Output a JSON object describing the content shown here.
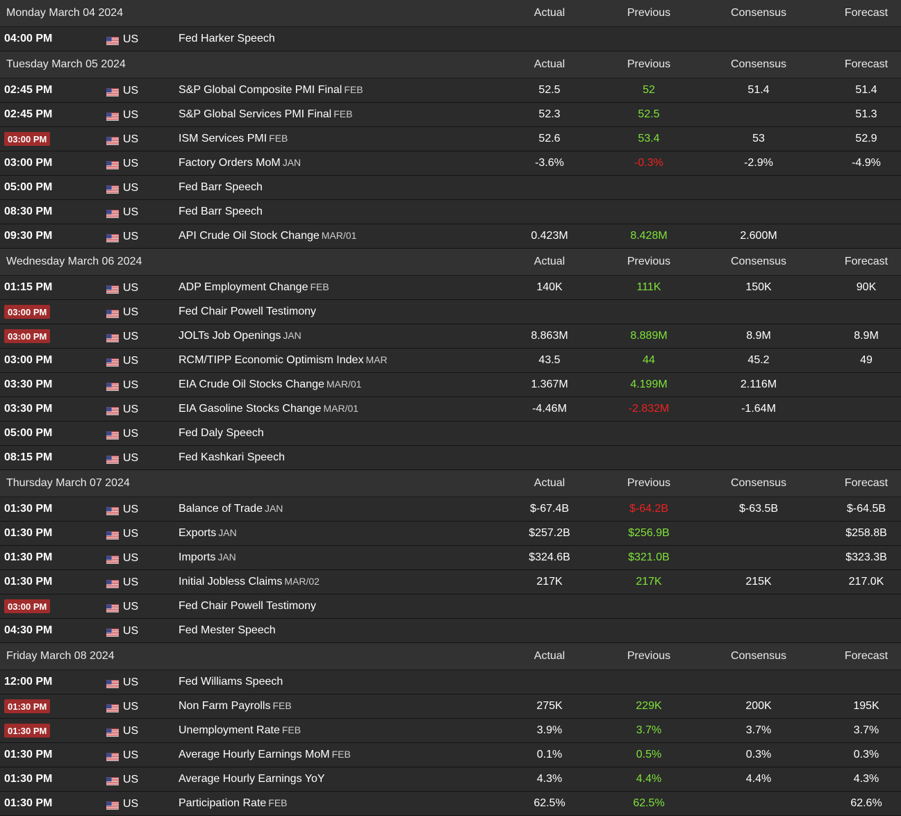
{
  "colors": {
    "background": "#2b2b2b",
    "header_background": "#323232",
    "high_impact_badge": "#a02c2c",
    "previous_up": "#7fe33a",
    "previous_down": "#ee2222"
  },
  "columns": {
    "actual": "Actual",
    "previous": "Previous",
    "consensus": "Consensus",
    "forecast": "Forecast"
  },
  "country_icon": "us-flag-icon",
  "days": [
    {
      "date": "Monday March 04 2024",
      "events": [
        {
          "time": "04:00 PM",
          "high": false,
          "country": "US",
          "event": "Fed Harker Speech",
          "ref": "",
          "actual": "",
          "previous": "",
          "prev_trend": "same",
          "consensus": "",
          "forecast": ""
        }
      ]
    },
    {
      "date": "Tuesday March 05 2024",
      "events": [
        {
          "time": "02:45 PM",
          "high": false,
          "country": "US",
          "event": "S&P Global Composite PMI Final",
          "ref": "FEB",
          "actual": "52.5",
          "previous": "52",
          "prev_trend": "up",
          "consensus": "51.4",
          "forecast": "51.4"
        },
        {
          "time": "02:45 PM",
          "high": false,
          "country": "US",
          "event": "S&P Global Services PMI Final",
          "ref": "FEB",
          "actual": "52.3",
          "previous": "52.5",
          "prev_trend": "up",
          "consensus": "",
          "forecast": "51.3"
        },
        {
          "time": "03:00 PM",
          "high": true,
          "country": "US",
          "event": "ISM Services PMI",
          "ref": "FEB",
          "actual": "52.6",
          "previous": "53.4",
          "prev_trend": "up",
          "consensus": "53",
          "forecast": "52.9"
        },
        {
          "time": "03:00 PM",
          "high": false,
          "country": "US",
          "event": "Factory Orders MoM",
          "ref": "JAN",
          "actual": "-3.6%",
          "previous": "-0.3%",
          "prev_trend": "down",
          "consensus": "-2.9%",
          "forecast": "-4.9%"
        },
        {
          "time": "05:00 PM",
          "high": false,
          "country": "US",
          "event": "Fed Barr Speech",
          "ref": "",
          "actual": "",
          "previous": "",
          "prev_trend": "same",
          "consensus": "",
          "forecast": ""
        },
        {
          "time": "08:30 PM",
          "high": false,
          "country": "US",
          "event": "Fed Barr Speech",
          "ref": "",
          "actual": "",
          "previous": "",
          "prev_trend": "same",
          "consensus": "",
          "forecast": ""
        },
        {
          "time": "09:30 PM",
          "high": false,
          "country": "US",
          "event": "API Crude Oil Stock Change",
          "ref": "MAR/01",
          "actual": "0.423M",
          "previous": "8.428M",
          "prev_trend": "up",
          "consensus": "2.600M",
          "forecast": ""
        }
      ]
    },
    {
      "date": "Wednesday March 06 2024",
      "events": [
        {
          "time": "01:15 PM",
          "high": false,
          "country": "US",
          "event": "ADP Employment Change",
          "ref": "FEB",
          "actual": "140K",
          "previous": "111K",
          "prev_trend": "up",
          "consensus": "150K",
          "forecast": "90K"
        },
        {
          "time": "03:00 PM",
          "high": true,
          "country": "US",
          "event": "Fed Chair Powell Testimony",
          "ref": "",
          "actual": "",
          "previous": "",
          "prev_trend": "same",
          "consensus": "",
          "forecast": ""
        },
        {
          "time": "03:00 PM",
          "high": true,
          "country": "US",
          "event": "JOLTs Job Openings",
          "ref": "JAN",
          "actual": "8.863M",
          "previous": "8.889M",
          "prev_trend": "up",
          "consensus": "8.9M",
          "forecast": "8.9M"
        },
        {
          "time": "03:00 PM",
          "high": false,
          "country": "US",
          "event": "RCM/TIPP Economic Optimism Index",
          "ref": "MAR",
          "actual": "43.5",
          "previous": "44",
          "prev_trend": "up",
          "consensus": "45.2",
          "forecast": "49"
        },
        {
          "time": "03:30 PM",
          "high": false,
          "country": "US",
          "event": "EIA Crude Oil Stocks Change",
          "ref": "MAR/01",
          "actual": "1.367M",
          "previous": "4.199M",
          "prev_trend": "up",
          "consensus": "2.116M",
          "forecast": ""
        },
        {
          "time": "03:30 PM",
          "high": false,
          "country": "US",
          "event": "EIA Gasoline Stocks Change",
          "ref": "MAR/01",
          "actual": "-4.46M",
          "previous": "-2.832M",
          "prev_trend": "down",
          "consensus": "-1.64M",
          "forecast": ""
        },
        {
          "time": "05:00 PM",
          "high": false,
          "country": "US",
          "event": "Fed Daly Speech",
          "ref": "",
          "actual": "",
          "previous": "",
          "prev_trend": "same",
          "consensus": "",
          "forecast": ""
        },
        {
          "time": "08:15 PM",
          "high": false,
          "country": "US",
          "event": "Fed Kashkari Speech",
          "ref": "",
          "actual": "",
          "previous": "",
          "prev_trend": "same",
          "consensus": "",
          "forecast": ""
        }
      ]
    },
    {
      "date": "Thursday March 07 2024",
      "events": [
        {
          "time": "01:30 PM",
          "high": false,
          "country": "US",
          "event": "Balance of Trade",
          "ref": "JAN",
          "actual": "$-67.4B",
          "previous": "$-64.2B",
          "prev_trend": "down",
          "consensus": "$-63.5B",
          "forecast": "$-64.5B"
        },
        {
          "time": "01:30 PM",
          "high": false,
          "country": "US",
          "event": "Exports",
          "ref": "JAN",
          "actual": "$257.2B",
          "previous": "$256.9B",
          "prev_trend": "up",
          "consensus": "",
          "forecast": "$258.8B"
        },
        {
          "time": "01:30 PM",
          "high": false,
          "country": "US",
          "event": "Imports",
          "ref": "JAN",
          "actual": "$324.6B",
          "previous": "$321.0B",
          "prev_trend": "up",
          "consensus": "",
          "forecast": "$323.3B"
        },
        {
          "time": "01:30 PM",
          "high": false,
          "country": "US",
          "event": "Initial Jobless Claims",
          "ref": "MAR/02",
          "actual": "217K",
          "previous": "217K",
          "prev_trend": "up",
          "consensus": "215K",
          "forecast": "217.0K"
        },
        {
          "time": "03:00 PM",
          "high": true,
          "country": "US",
          "event": "Fed Chair Powell Testimony",
          "ref": "",
          "actual": "",
          "previous": "",
          "prev_trend": "same",
          "consensus": "",
          "forecast": ""
        },
        {
          "time": "04:30 PM",
          "high": false,
          "country": "US",
          "event": "Fed Mester Speech",
          "ref": "",
          "actual": "",
          "previous": "",
          "prev_trend": "same",
          "consensus": "",
          "forecast": ""
        }
      ]
    },
    {
      "date": "Friday March 08 2024",
      "events": [
        {
          "time": "12:00 PM",
          "high": false,
          "country": "US",
          "event": "Fed Williams Speech",
          "ref": "",
          "actual": "",
          "previous": "",
          "prev_trend": "same",
          "consensus": "",
          "forecast": ""
        },
        {
          "time": "01:30 PM",
          "high": true,
          "country": "US",
          "event": "Non Farm Payrolls",
          "ref": "FEB",
          "actual": "275K",
          "previous": "229K",
          "prev_trend": "up",
          "consensus": "200K",
          "forecast": "195K"
        },
        {
          "time": "01:30 PM",
          "high": true,
          "country": "US",
          "event": "Unemployment Rate",
          "ref": "FEB",
          "actual": "3.9%",
          "previous": "3.7%",
          "prev_trend": "up",
          "consensus": "3.7%",
          "forecast": "3.7%"
        },
        {
          "time": "01:30 PM",
          "high": false,
          "country": "US",
          "event": "Average Hourly Earnings MoM",
          "ref": "FEB",
          "actual": "0.1%",
          "previous": "0.5%",
          "prev_trend": "up",
          "consensus": "0.3%",
          "forecast": "0.3%"
        },
        {
          "time": "01:30 PM",
          "high": false,
          "country": "US",
          "event": "Average Hourly Earnings YoY",
          "ref": "",
          "actual": "4.3%",
          "previous": "4.4%",
          "prev_trend": "up",
          "consensus": "4.4%",
          "forecast": "4.3%"
        },
        {
          "time": "01:30 PM",
          "high": false,
          "country": "US",
          "event": "Participation Rate",
          "ref": "FEB",
          "actual": "62.5%",
          "previous": "62.5%",
          "prev_trend": "up",
          "consensus": "",
          "forecast": "62.6%"
        }
      ]
    }
  ]
}
